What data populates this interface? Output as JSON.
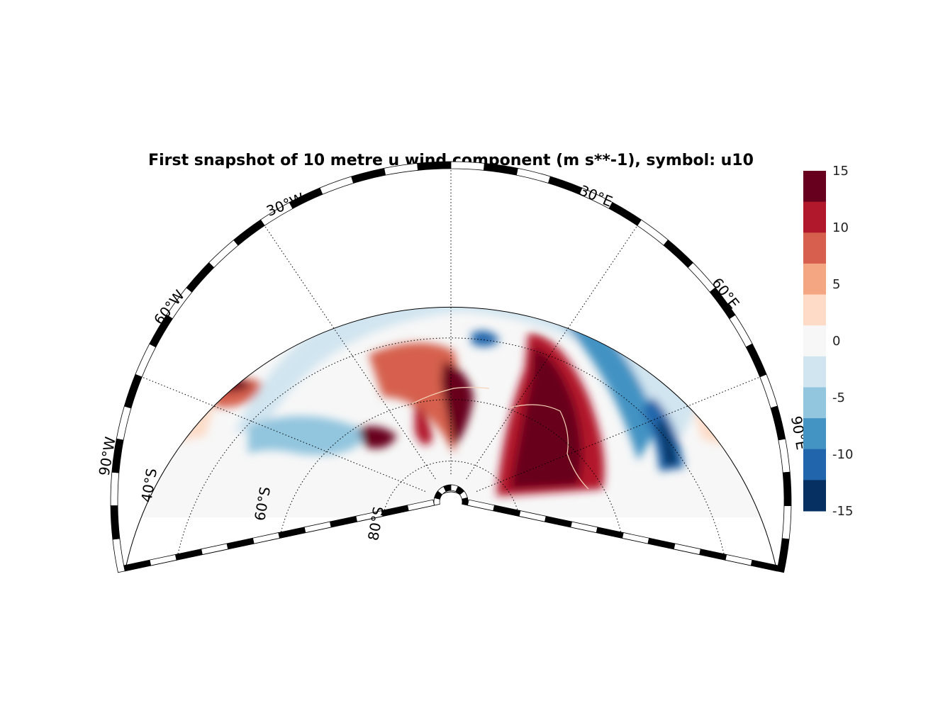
{
  "title": "First snapshot of 10 metre u wind component (m s**-1), symbol: u10",
  "map": {
    "projection": "south polar stereographic sector",
    "lon_range": [
      -90,
      90
    ],
    "lat_range": [
      -90,
      -30
    ],
    "longitude_labels": [
      "90°W",
      "60°W",
      "30°W",
      "30°E",
      "60°E",
      "90°E"
    ],
    "latitude_labels": [
      "40°S",
      "60°S",
      "80°S"
    ],
    "gridline_style": "dotted"
  },
  "colorbar": {
    "levels": [
      -15,
      -12.5,
      -10,
      -7.5,
      -5,
      -2.5,
      0,
      2.5,
      5,
      7.5,
      10,
      12.5,
      15
    ],
    "colors": [
      "#053061",
      "#2166ac",
      "#4393c3",
      "#92c5de",
      "#d1e5f0",
      "#f7f7f7",
      "#fddbc7",
      "#f4a582",
      "#d6604d",
      "#b2182b",
      "#67001f"
    ],
    "tick_labels": [
      "15",
      "10",
      "5",
      "0",
      "-5",
      "-10",
      "-15"
    ]
  }
}
